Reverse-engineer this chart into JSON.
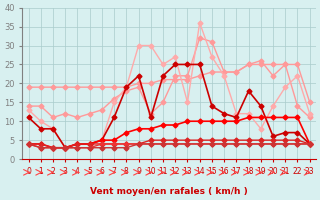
{
  "title": "",
  "xlabel": "Vent moyen/en rafales ( km/h )",
  "x": [
    0,
    1,
    2,
    3,
    4,
    5,
    6,
    7,
    8,
    9,
    10,
    11,
    12,
    13,
    14,
    15,
    16,
    17,
    18,
    19,
    20,
    21,
    22,
    23
  ],
  "series": [
    {
      "color": "#ff9999",
      "alpha": 1.0,
      "lw": 1.0,
      "marker": "D",
      "ms": 2.5,
      "values": [
        19,
        19,
        19,
        19,
        19,
        19,
        19,
        19,
        19,
        20,
        20,
        21,
        21,
        21,
        22,
        23,
        23,
        23,
        25,
        25,
        25,
        25,
        25,
        15
      ]
    },
    {
      "color": "#ff9999",
      "alpha": 1.0,
      "lw": 1.0,
      "marker": "D",
      "ms": 2.5,
      "values": [
        14,
        14,
        11,
        12,
        11,
        12,
        13,
        16,
        18,
        19,
        12,
        15,
        22,
        22,
        32,
        31,
        23,
        23,
        25,
        26,
        22,
        25,
        14,
        11
      ]
    },
    {
      "color": "#ffaaaa",
      "alpha": 1.0,
      "lw": 1.0,
      "marker": "D",
      "ms": 2.5,
      "values": [
        13,
        10,
        8,
        3,
        4,
        4,
        5,
        15,
        19,
        30,
        30,
        25,
        27,
        15,
        36,
        27,
        22,
        12,
        12,
        8,
        14,
        19,
        22,
        12
      ]
    },
    {
      "color": "#cc0000",
      "alpha": 1.0,
      "lw": 1.2,
      "marker": "D",
      "ms": 2.5,
      "values": [
        11,
        8,
        8,
        3,
        4,
        4,
        5,
        11,
        19,
        22,
        11,
        22,
        25,
        25,
        25,
        14,
        12,
        11,
        18,
        14,
        6,
        7,
        7,
        4
      ]
    },
    {
      "color": "#ff0000",
      "alpha": 1.0,
      "lw": 1.2,
      "marker": "D",
      "ms": 2.5,
      "values": [
        4,
        4,
        3,
        3,
        4,
        4,
        5,
        5,
        7,
        8,
        8,
        9,
        9,
        10,
        10,
        10,
        10,
        10,
        11,
        11,
        11,
        11,
        11,
        4
      ]
    },
    {
      "color": "#dd2222",
      "alpha": 1.0,
      "lw": 1.0,
      "marker": "D",
      "ms": 2.5,
      "values": [
        4,
        4,
        3,
        3,
        4,
        4,
        4,
        4,
        4,
        4,
        5,
        5,
        5,
        5,
        5,
        5,
        5,
        5,
        5,
        5,
        5,
        5,
        5,
        4
      ]
    },
    {
      "color": "#ee3333",
      "alpha": 1.0,
      "lw": 1.0,
      "marker": "D",
      "ms": 2.5,
      "values": [
        4,
        3,
        3,
        3,
        3,
        3,
        4,
        4,
        4,
        4,
        4,
        4,
        4,
        4,
        4,
        4,
        4,
        4,
        4,
        4,
        4,
        4,
        4,
        4
      ]
    },
    {
      "color": "#cc3333",
      "alpha": 1.0,
      "lw": 1.0,
      "marker": "D",
      "ms": 2.5,
      "values": [
        4,
        3,
        3,
        3,
        3,
        3,
        3,
        3,
        3,
        4,
        4,
        4,
        4,
        4,
        4,
        4,
        4,
        4,
        4,
        4,
        4,
        4,
        4,
        4
      ]
    }
  ],
  "wind_arrows": [
    0,
    1,
    2,
    3,
    4,
    5,
    6,
    7,
    8,
    9,
    10,
    11,
    12,
    13,
    14,
    15,
    16,
    17,
    18,
    19,
    20,
    21,
    22,
    23
  ],
  "arrow_angles": [
    90,
    90,
    45,
    90,
    90,
    90,
    90,
    90,
    90,
    90,
    90,
    90,
    90,
    90,
    90,
    90,
    90,
    90,
    90,
    90,
    90,
    90,
    0,
    45
  ],
  "ylim": [
    0,
    40
  ],
  "yticks": [
    0,
    5,
    10,
    15,
    20,
    25,
    30,
    35,
    40
  ],
  "bg_color": "#d8f0f0",
  "grid_color": "#aacccc",
  "arrow_color": "#ff4444"
}
